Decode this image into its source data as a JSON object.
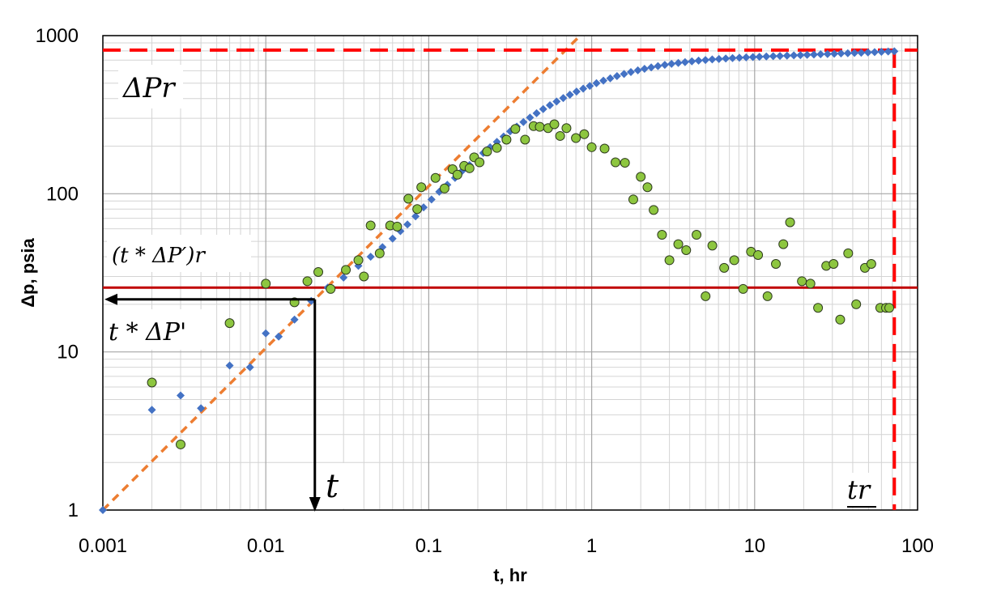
{
  "chart_data": {
    "type": "scatter",
    "title": "",
    "xlabel": "t, hr",
    "ylabel": "Δp, psia",
    "x_scale": "log",
    "y_scale": "log",
    "xlim": [
      0.001,
      100
    ],
    "ylim": [
      1,
      1000
    ],
    "grid": true,
    "x_ticks": [
      0.001,
      0.01,
      0.1,
      1,
      10,
      100
    ],
    "x_tick_labels": [
      "0.001",
      "0.01",
      "0.1",
      "1",
      "10",
      "100"
    ],
    "y_ticks": [
      1,
      10,
      100,
      1000
    ],
    "y_tick_labels": [
      "1",
      "10",
      "100",
      "1000"
    ],
    "series": [
      {
        "marker": "diamond",
        "color": "#4472C4",
        "x": [
          0.001,
          0.002,
          0.003,
          0.004,
          0.006,
          0.008,
          0.01,
          0.012,
          0.015,
          0.019,
          0.024,
          0.03,
          0.037,
          0.044,
          0.052,
          0.06,
          0.067,
          0.074,
          0.083,
          0.093,
          0.104,
          0.116,
          0.13,
          0.145,
          0.16,
          0.178,
          0.196,
          0.216,
          0.238,
          0.262,
          0.288,
          0.316,
          0.347,
          0.381,
          0.418,
          0.459,
          0.504,
          0.554,
          0.609,
          0.669,
          0.735,
          0.807,
          0.887,
          0.974,
          1.07,
          1.18,
          1.3,
          1.43,
          1.58,
          1.74,
          1.92,
          2.11,
          2.32,
          2.55,
          2.81,
          3.09,
          3.4,
          3.74,
          4.12,
          4.53,
          4.99,
          5.49,
          6.04,
          6.65,
          7.32,
          8.06,
          8.87,
          9.76,
          10.7,
          11.8,
          13.0,
          14.3,
          15.8,
          17.4,
          19.1,
          21.0,
          23.1,
          25.4,
          28.0,
          30.8,
          33.9,
          37.3,
          41.0,
          45.1,
          49.6,
          54.5,
          60.0,
          66.0,
          72.0
        ],
        "y": [
          1.0,
          4.3,
          5.3,
          4.4,
          8.2,
          8.0,
          13.1,
          12.5,
          16.0,
          21.0,
          25.5,
          29.5,
          35.0,
          40.0,
          46.0,
          52.0,
          58.0,
          64.0,
          72.0,
          82.0,
          92.0,
          103.0,
          114.0,
          126.0,
          139.0,
          152.0,
          166.0,
          181.0,
          197.0,
          213.0,
          230.0,
          248.0,
          266.0,
          284.0,
          303.0,
          323.0,
          343.0,
          363.0,
          383.0,
          403.0,
          423.0,
          443.0,
          462.0,
          481.0,
          500.0,
          519.0,
          537.0,
          555.0,
          572.0,
          588.0,
          603.0,
          617.0,
          630.0,
          642.0,
          653.0,
          663.0,
          672.0,
          680.0,
          688.0,
          695.0,
          701.0,
          707.0,
          712.0,
          717.0,
          721.0,
          725.0,
          729.0,
          732.0,
          735.0,
          738.0,
          741.0,
          744.0,
          747.0,
          750.0,
          753.0,
          756.0,
          759.0,
          762.0,
          765.0,
          768.0,
          771.0,
          774.0,
          777.0,
          780.0,
          783.0,
          786.0,
          790.0,
          793.0,
          796.0
        ]
      },
      {
        "marker": "circle",
        "color": "#8DC63F",
        "x": [
          0.002,
          0.003,
          0.006,
          0.01,
          0.015,
          0.018,
          0.021,
          0.025,
          0.031,
          0.037,
          0.04,
          0.044,
          0.05,
          0.058,
          0.064,
          0.075,
          0.085,
          0.09,
          0.11,
          0.125,
          0.14,
          0.15,
          0.165,
          0.178,
          0.19,
          0.205,
          0.228,
          0.262,
          0.3,
          0.34,
          0.39,
          0.44,
          0.48,
          0.54,
          0.59,
          0.64,
          0.7,
          0.8,
          0.9,
          1.0,
          1.2,
          1.4,
          1.6,
          1.8,
          2.0,
          2.2,
          2.4,
          2.7,
          3.0,
          3.4,
          3.8,
          4.4,
          5.0,
          5.5,
          6.5,
          7.5,
          8.5,
          9.5,
          10.5,
          12.0,
          13.5,
          15.0,
          16.5,
          19.5,
          22.0,
          24.5,
          27.5,
          30.5,
          33.5,
          37.5,
          42.0,
          47.5,
          52.0,
          59.0,
          64.0,
          67.0
        ],
        "y": [
          6.4,
          2.6,
          15.2,
          27.0,
          20.6,
          28.0,
          32.0,
          25.0,
          33.0,
          38.0,
          30.0,
          63.0,
          42.0,
          63.0,
          62.0,
          93.0,
          80.0,
          110.0,
          126.0,
          108.0,
          143.0,
          132.0,
          150.0,
          145.0,
          170.0,
          158.0,
          185.0,
          195.0,
          220.0,
          257.0,
          220.0,
          268.0,
          265.0,
          260.0,
          275.0,
          232.0,
          260.0,
          225.0,
          238.0,
          197.0,
          193.0,
          158.0,
          157.0,
          92.0,
          128.0,
          110.0,
          79.0,
          55.0,
          38.0,
          48.0,
          44.0,
          55.0,
          22.5,
          47.0,
          34.0,
          38.0,
          25.0,
          43.0,
          41.0,
          22.5,
          36.0,
          48.0,
          66.0,
          28.0,
          27.0,
          19.0,
          35.0,
          36.0,
          16.0,
          42.0,
          20.0,
          34.0,
          36.0,
          19.0,
          19.0,
          19.0
        ]
      }
    ],
    "lines": [
      {
        "style": "dashed",
        "color": "#ED7D31",
        "x": [
          0.001,
          0.85
        ],
        "y": [
          1.0,
          1000.0
        ]
      },
      {
        "style": "solid",
        "color": "#C00000",
        "y_value": 25.5
      },
      {
        "style": "dashed",
        "color": "#FF0000",
        "y_value": 810.0
      },
      {
        "style": "dashed",
        "color": "#FF0000",
        "x_value": 72.0
      }
    ],
    "annotations": {
      "dp_r": "ΔPr",
      "tdp_r": "(t * ΔP′)r",
      "tdp": "t * ΔP'",
      "t": "t",
      "t_r": "tr",
      "arrow_point": {
        "x": 0.02,
        "y": 21.5
      }
    }
  }
}
